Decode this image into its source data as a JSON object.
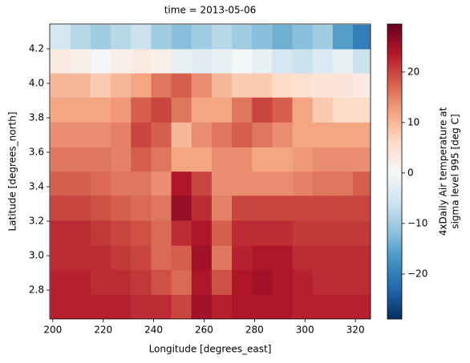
{
  "chart_data": {
    "type": "heatmap",
    "title": "time = 2013-05-06",
    "x_label": "Longitude [degrees_east]",
    "y_label": "Latitude [degrees_north]",
    "colorbar_label": [
      "4xDaily Air temperature at",
      "sigma level 995 [deg C]"
    ],
    "cmap": "RdBu_r",
    "x": [
      203,
      211,
      219,
      227,
      235,
      243,
      251,
      259,
      267,
      275,
      283,
      291,
      299,
      307,
      315,
      323
    ],
    "y": [
      2.7,
      2.85,
      2.99,
      3.13,
      3.28,
      3.42,
      3.56,
      3.7,
      3.85,
      3.99,
      4.13,
      4.27
    ],
    "z": [
      [
        23,
        23,
        23,
        23,
        22,
        22,
        20,
        25,
        23,
        24,
        24,
        24,
        23,
        23,
        23,
        23
      ],
      [
        23,
        23,
        22,
        22,
        21,
        19,
        17,
        24,
        19,
        24,
        25,
        24,
        23,
        22,
        22,
        22
      ],
      [
        22,
        22,
        22,
        21,
        20,
        17,
        18,
        25,
        16,
        23,
        24,
        24,
        22,
        22,
        22,
        22
      ],
      [
        22,
        22,
        21,
        20,
        19,
        17,
        22,
        24,
        18,
        22,
        22,
        22,
        21,
        21,
        21,
        21
      ],
      [
        20,
        20,
        19,
        18,
        17,
        16,
        26,
        22,
        15,
        20,
        20,
        20,
        20,
        20,
        20,
        20
      ],
      [
        18,
        18,
        17,
        16,
        16,
        14,
        24,
        20,
        14,
        14,
        14,
        14,
        15,
        16,
        16,
        18
      ],
      [
        16,
        16,
        16,
        15,
        18,
        16,
        12,
        12,
        14,
        14,
        12,
        12,
        13,
        14,
        14,
        14
      ],
      [
        14,
        14,
        14,
        15,
        20,
        18,
        10,
        14,
        16,
        18,
        16,
        14,
        12,
        12,
        12,
        12
      ],
      [
        12,
        12,
        12,
        13,
        18,
        20,
        16,
        12,
        12,
        16,
        20,
        18,
        12,
        8,
        6,
        6
      ],
      [
        10,
        10,
        8,
        10,
        12,
        16,
        18,
        14,
        10,
        8,
        8,
        6,
        5,
        4,
        4,
        3
      ],
      [
        3,
        2,
        0,
        2,
        3,
        2,
        -2,
        -3,
        -2,
        0,
        -2,
        -5,
        -6,
        -4,
        -2,
        -6
      ],
      [
        -5,
        -8,
        -10,
        -8,
        -6,
        -10,
        -12,
        -10,
        -8,
        -10,
        -12,
        -14,
        -12,
        -10,
        -16,
        -20
      ]
    ],
    "xlim": [
      198.8,
      326.0
    ],
    "ylim": [
      2.633,
      4.344
    ],
    "clim": [
      -28.9,
      29.5
    ],
    "xticks": [
      200,
      220,
      240,
      260,
      280,
      300,
      320
    ],
    "yticks": [
      2.8,
      {
        "value": 3.0,
        "label": "3.0"
      },
      3.2,
      3.4,
      3.6,
      3.8,
      {
        "value": 4.0,
        "label": "4.0"
      },
      4.2
    ],
    "cticks": [
      {
        "value": -20,
        "label": "−20"
      },
      {
        "value": -10,
        "label": "−10"
      },
      0,
      10,
      20
    ]
  }
}
